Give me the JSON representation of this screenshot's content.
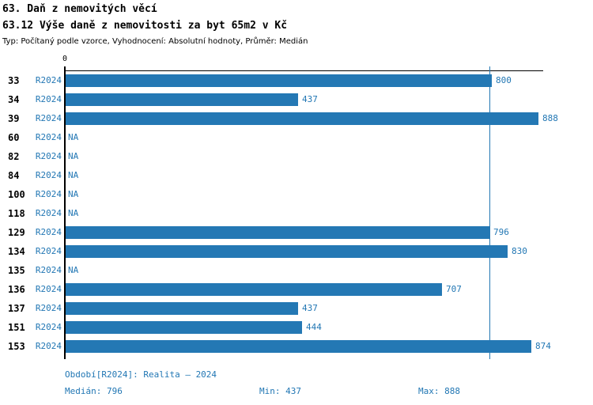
{
  "header": {
    "title": "63. Daň z nemovitých věcí",
    "subtitle": "63.12 Výše daně z nemovitosti za byt 65m2 v Kč",
    "meta": "Typ: Počítaný podle vzorce, Vyhodnocení: Absolutní hodnoty, Průměr: Medián"
  },
  "chart_data": {
    "type": "bar",
    "orientation": "horizontal",
    "title": "63.12 Výše daně z nemovitosti za byt 65m2 v Kč",
    "categories": [
      "33",
      "34",
      "39",
      "60",
      "82",
      "84",
      "100",
      "118",
      "129",
      "134",
      "135",
      "136",
      "137",
      "151",
      "153"
    ],
    "series": [
      {
        "name": "R2024",
        "values": [
          800,
          437,
          888,
          null,
          null,
          null,
          null,
          null,
          796,
          830,
          null,
          707,
          437,
          444,
          874
        ]
      }
    ],
    "na_label": "NA",
    "x_origin_label": "0",
    "xlim": [
      0,
      894
    ],
    "median": 796,
    "min": 437,
    "max": 888,
    "grid": false,
    "legend": false,
    "bar_color": "#2478b4",
    "label_color": "#2277b4",
    "axis_color": "#000000"
  },
  "footer": {
    "period": "Období[R2024]: Realita – 2024",
    "median_label": "Medián: 796",
    "min_label": "Min: 437",
    "max_label": "Max: 888"
  }
}
